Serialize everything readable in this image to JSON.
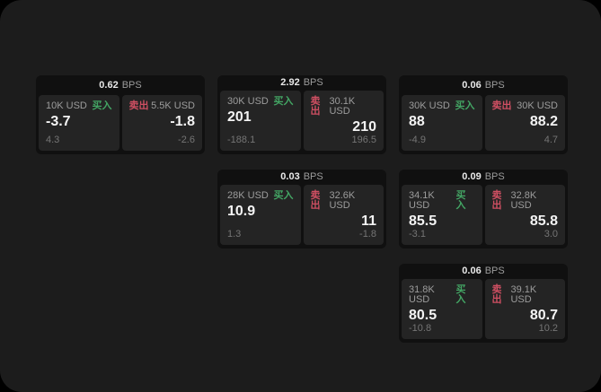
{
  "colors": {
    "page_bg": "#000000",
    "panel_bg": "#1c1c1c",
    "card_bg": "#101010",
    "subcard_bg": "#242424",
    "buy_green": "#43a564",
    "sell_red": "#ce4f62",
    "label_gray": "#9c9c9c",
    "muted_gray": "#757575",
    "value_white": "#f4f4f4"
  },
  "labels": {
    "buy": "买入",
    "sell": "卖出",
    "bps": "BPS"
  },
  "cards": [
    {
      "row": 1,
      "col": 1,
      "bps": "0.62",
      "buy": {
        "size": "10K USD",
        "value": "-3.7",
        "delta": "4.3"
      },
      "sell": {
        "size": "5.5K USD",
        "value": "-1.8",
        "delta": "-2.6"
      }
    },
    {
      "row": 1,
      "col": 2,
      "bps": "2.92",
      "buy": {
        "size": "30K USD",
        "value": "201",
        "delta": "-188.1"
      },
      "sell": {
        "size": "30.1K USD",
        "value": "210",
        "delta": "196.5"
      }
    },
    {
      "row": 1,
      "col": 3,
      "bps": "0.06",
      "buy": {
        "size": "30K USD",
        "value": "88",
        "delta": "-4.9"
      },
      "sell": {
        "size": "30K USD",
        "value": "88.2",
        "delta": "4.7"
      }
    },
    {
      "row": 2,
      "col": 2,
      "bps": "0.03",
      "buy": {
        "size": "28K USD",
        "value": "10.9",
        "delta": "1.3"
      },
      "sell": {
        "size": "32.6K USD",
        "value": "11",
        "delta": "-1.8"
      }
    },
    {
      "row": 2,
      "col": 3,
      "bps": "0.09",
      "buy": {
        "size": "34.1K USD",
        "value": "85.5",
        "delta": "-3.1"
      },
      "sell": {
        "size": "32.8K USD",
        "value": "85.8",
        "delta": "3.0"
      }
    },
    {
      "row": 3,
      "col": 3,
      "bps": "0.06",
      "buy": {
        "size": "31.8K USD",
        "value": "80.5",
        "delta": "-10.8"
      },
      "sell": {
        "size": "39.1K USD",
        "value": "80.7",
        "delta": "10.2"
      }
    }
  ]
}
